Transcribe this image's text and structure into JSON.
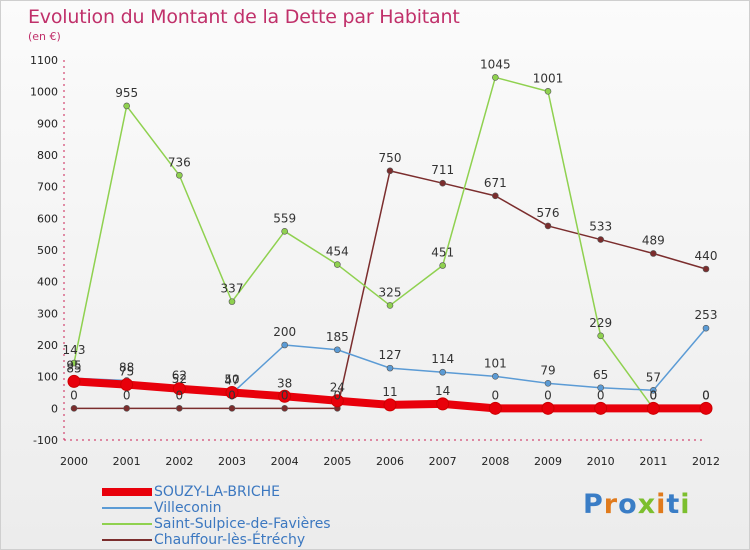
{
  "title": "Evolution du Montant de la Dette par Habitant",
  "subtitle": "(en €)",
  "logo": {
    "text": "Proxiti",
    "letter_colors": [
      "#3a7dc6",
      "#e07a1c",
      "#3a7dc6",
      "#7cbf2e",
      "#e07a1c",
      "#3a7dc6",
      "#7cbf2e"
    ]
  },
  "chart_data": {
    "type": "line",
    "title": "Evolution du Montant de la Dette par Habitant",
    "subtitle": "(en €)",
    "x": [
      "2000",
      "2001",
      "2002",
      "2003",
      "2004",
      "2005",
      "2006",
      "2007",
      "2008",
      "2009",
      "2010",
      "2011",
      "2012"
    ],
    "ylim": [
      -100,
      1100
    ],
    "yticks": [
      "-100",
      "0",
      "100",
      "200",
      "300",
      "400",
      "500",
      "600",
      "700",
      "800",
      "900",
      "1000",
      "1100"
    ],
    "grid": false,
    "legend_position": "bottom",
    "series": [
      {
        "name": "SOUZY-LA-BRICHE",
        "color": "#e8000b",
        "values": [
          85,
          75,
          62,
          50,
          38,
          24,
          11,
          14,
          0,
          0,
          0,
          0,
          0
        ]
      },
      {
        "name": "Villeconin",
        "color": "#5b9bd5",
        "values": [
          95,
          88,
          52,
          47,
          200,
          185,
          127,
          114,
          101,
          79,
          65,
          57,
          253
        ]
      },
      {
        "name": "Saint-Sulpice-de-Favières",
        "color": "#8fd14f",
        "values": [
          143,
          955,
          736,
          337,
          559,
          454,
          325,
          451,
          1045,
          1001,
          229,
          0,
          0
        ]
      },
      {
        "name": "Chauffour-lès-Étréchy",
        "color": "#7b2d2d",
        "values": [
          0,
          0,
          0,
          0,
          0,
          0,
          750,
          711,
          671,
          576,
          533,
          489,
          440
        ]
      }
    ],
    "data_labels": [
      [
        "85",
        "75",
        "62",
        "50",
        "38",
        "24",
        "11",
        "14",
        "0",
        "0",
        "0",
        "0",
        "0"
      ],
      [
        "95",
        "88",
        "52",
        "47",
        "200",
        "185",
        "127",
        "114",
        "101",
        "79",
        "65",
        "57",
        "253"
      ],
      [
        "143",
        "955",
        "736",
        "337",
        "559",
        "454",
        "325",
        "451",
        "1045",
        "1001",
        "229",
        "0",
        "0"
      ],
      [
        "0",
        "0",
        "0",
        "0",
        "0",
        "0",
        "750",
        "711",
        "671",
        "576",
        "533",
        "489",
        "440"
      ]
    ]
  }
}
